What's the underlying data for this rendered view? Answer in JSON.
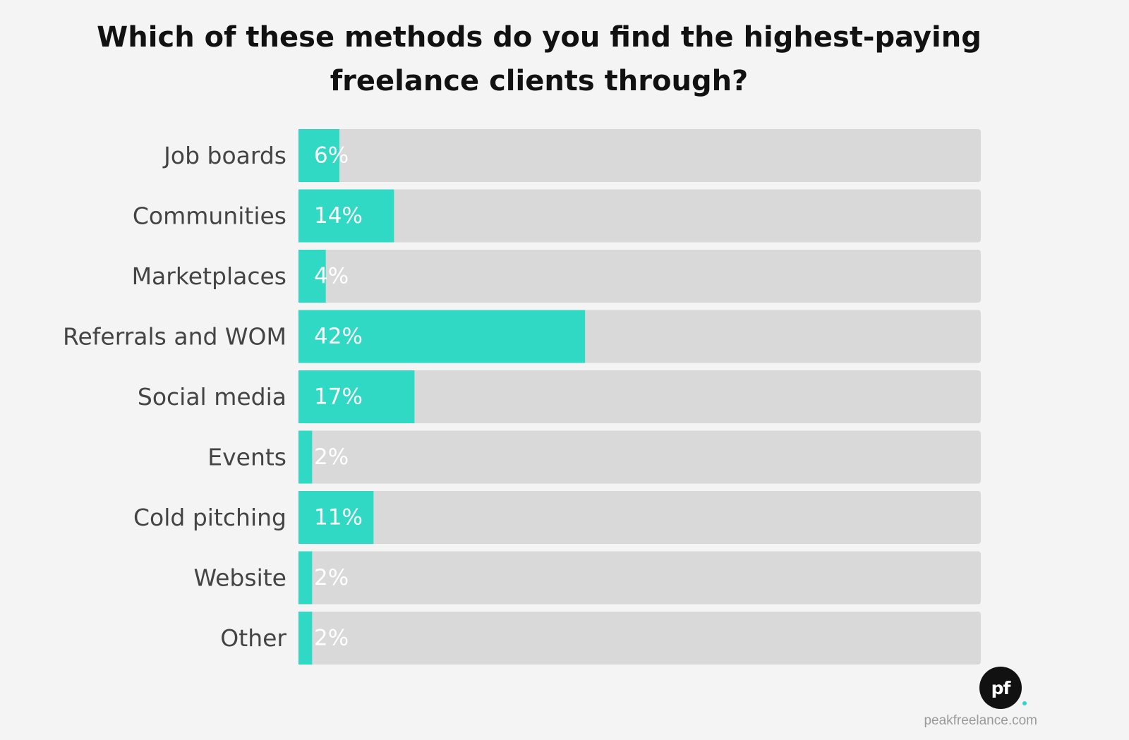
{
  "chart_data": {
    "type": "bar",
    "orientation": "horizontal",
    "title_lines": [
      "Which of these methods do you find the highest-paying",
      "freelance clients through?"
    ],
    "categories": [
      "Job boards",
      "Communities",
      "Marketplaces",
      "Referrals and WOM",
      "Social media",
      "Events",
      "Cold pitching",
      "Website",
      "Other"
    ],
    "values": [
      6,
      14,
      4,
      42,
      17,
      2,
      11,
      2,
      2
    ],
    "value_labels": [
      "6%",
      "14%",
      "4%",
      "42%",
      "17%",
      "2%",
      "11%",
      "2%",
      "2%"
    ],
    "unit": "%",
    "xlim": [
      0,
      100
    ],
    "grid": false,
    "legend": "none",
    "colors": {
      "bar": "#2fd9c4",
      "track": "#d9d9d9",
      "label_text": "#444444",
      "value_text": "#ffffff"
    }
  },
  "branding": {
    "logo_text": "pf",
    "logo_dot_color": "#2fd9c4",
    "site": "peakfreelance.com"
  }
}
